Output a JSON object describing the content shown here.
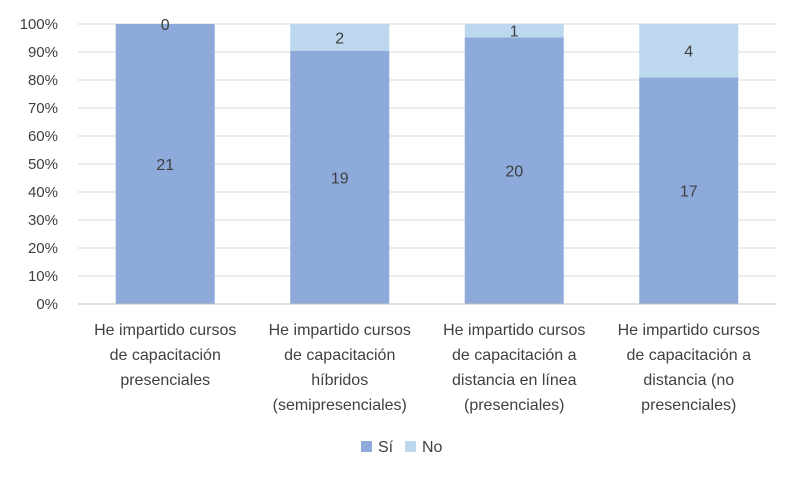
{
  "chart_data": {
    "type": "bar",
    "stacked": true,
    "percent_stacked": true,
    "title": "",
    "xlabel": "",
    "ylabel": "",
    "ylim": [
      0,
      100
    ],
    "y_ticks": [
      "0%",
      "10%",
      "20%",
      "30%",
      "40%",
      "50%",
      "60%",
      "70%",
      "80%",
      "90%",
      "100%"
    ],
    "grid": "horizontal",
    "legend_position": "bottom",
    "categories": [
      [
        "He impartido cursos",
        "de capacitación",
        "presenciales"
      ],
      [
        "He impartido cursos",
        "de capacitación",
        "híbridos",
        "(semipresenciales)"
      ],
      [
        "He impartido cursos",
        "de capacitación a",
        "distancia en línea",
        "(presenciales)"
      ],
      [
        "He impartido cursos",
        "de capacitación a",
        "distancia (no",
        "presenciales)"
      ]
    ],
    "series": [
      {
        "name": "Sí",
        "color": "#8EAADB",
        "values": [
          21,
          19,
          20,
          17
        ]
      },
      {
        "name": "No",
        "color": "#BDD7EE",
        "values": [
          0,
          2,
          1,
          4
        ]
      }
    ]
  }
}
